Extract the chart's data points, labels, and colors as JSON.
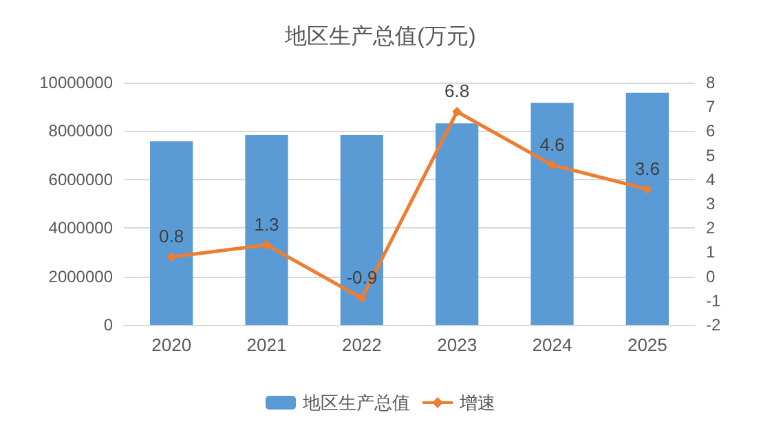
{
  "chart_data": {
    "type": "bar",
    "title": "地区生产总值(万元)",
    "categories": [
      "2020",
      "2021",
      "2022",
      "2023",
      "2024",
      "2025"
    ],
    "series": [
      {
        "name": "地区生产总值",
        "color": "#5b9bd5",
        "values": [
          7580000,
          7840000,
          7840000,
          8320000,
          9160000,
          9580000
        ]
      },
      {
        "name": "增速",
        "type": "line",
        "axis": "y2",
        "color": "#ed7d31",
        "marker": "diamond",
        "values": [
          0.8,
          1.3,
          -0.9,
          6.8,
          4.6,
          3.6
        ],
        "value_labels": [
          "0.8",
          "1.3",
          "-0.9",
          "6.8",
          "4.6",
          "3.6"
        ]
      }
    ],
    "ylim": [
      0,
      10000000
    ],
    "yticks": [
      0,
      2000000,
      4000000,
      6000000,
      8000000,
      10000000
    ],
    "y2lim": [
      -2,
      8
    ],
    "y2ticks": [
      -2,
      -1,
      0,
      1,
      2,
      3,
      4,
      5,
      6,
      7,
      8
    ],
    "grid": "y",
    "legend": "bottom"
  }
}
